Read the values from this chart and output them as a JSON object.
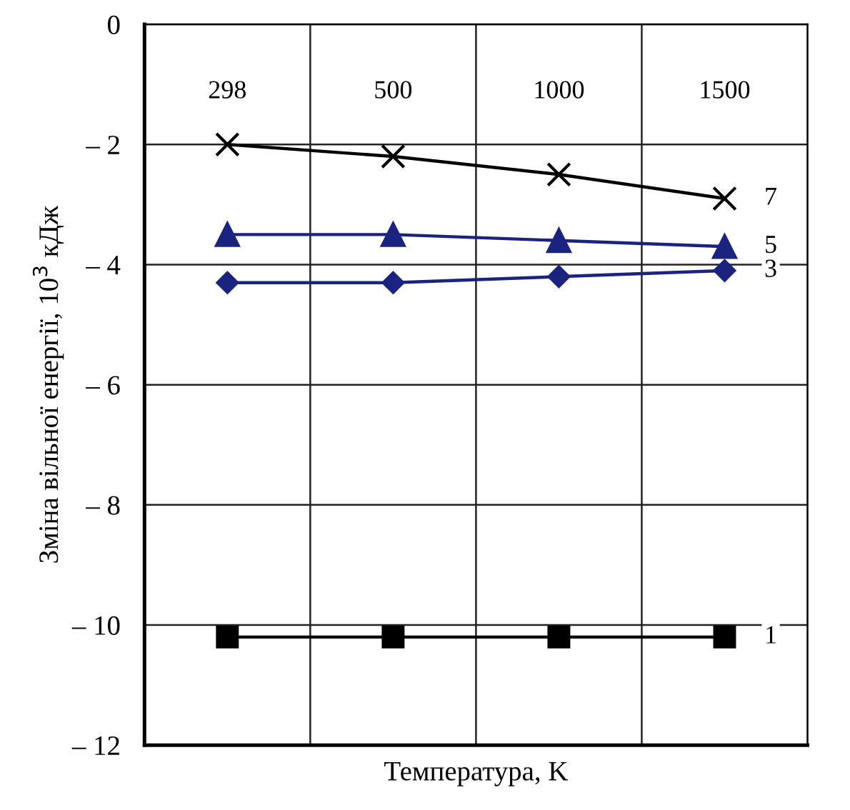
{
  "chart_data": {
    "type": "line",
    "xlabel": "Температура, K",
    "ylabel": "Зміна вільної енергії, 10$^{3}$ кДж",
    "categories": [
      "298",
      "500",
      "1000",
      "1500"
    ],
    "ylim": [
      -12,
      0
    ],
    "yticks": [
      0,
      {
        "value": -2,
        "label": "– 2"
      },
      {
        "value": -4,
        "label": "– 4"
      },
      {
        "value": -6,
        "label": "– 6"
      },
      {
        "value": -8,
        "label": "– 8"
      },
      {
        "value": -10,
        "label": "– 10"
      },
      {
        "value": -12,
        "label": "– 12"
      }
    ],
    "grid": true,
    "legend": false,
    "series": [
      {
        "name": "7",
        "color": "#000000",
        "marker": "cross",
        "values": [
          -2.0,
          -2.2,
          -2.5,
          -2.9
        ]
      },
      {
        "name": "5",
        "color": "#1a237e",
        "marker": "triangle",
        "values": [
          -3.5,
          -3.5,
          -3.6,
          -3.7
        ]
      },
      {
        "name": "3",
        "color": "#1a237e",
        "marker": "diamond",
        "values": [
          -4.3,
          -4.3,
          -4.2,
          -4.1
        ]
      },
      {
        "name": "1",
        "color": "#000000",
        "marker": "square",
        "values": [
          -10.2,
          -10.2,
          -10.2,
          -10.2
        ]
      }
    ]
  }
}
